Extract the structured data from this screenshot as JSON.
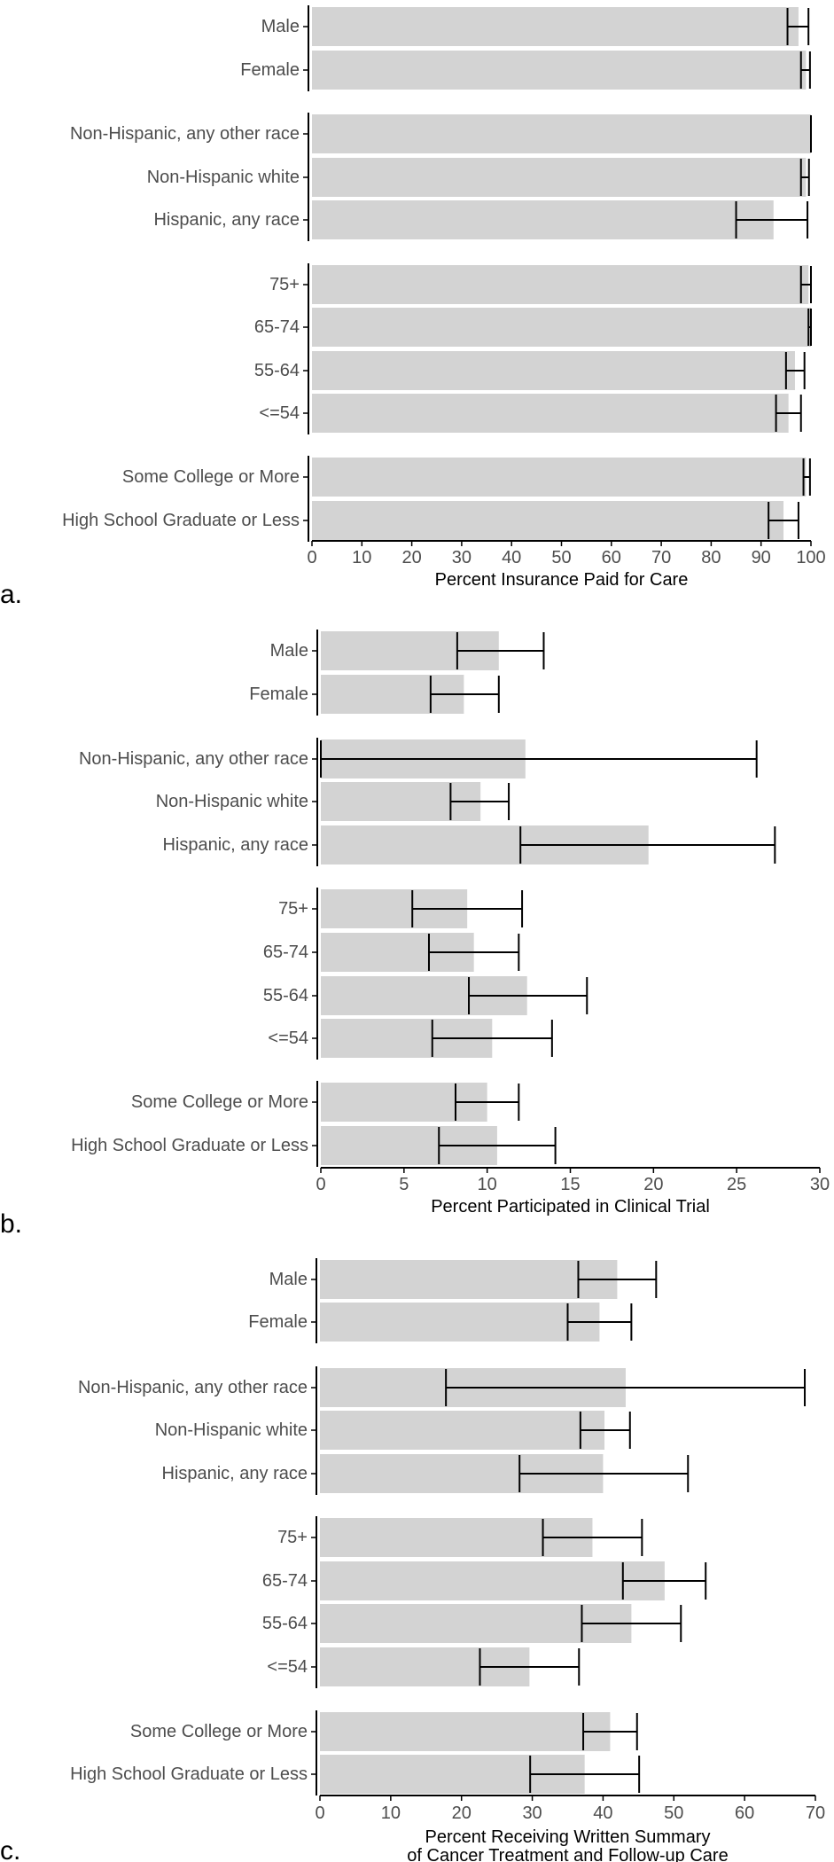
{
  "chart_data": [
    {
      "type": "bar",
      "panel_label": "a.",
      "xlabel": [
        "Percent Insurance Paid for Care"
      ],
      "xlim": [
        0,
        100
      ],
      "xticks": [
        0,
        10,
        20,
        30,
        40,
        50,
        60,
        70,
        80,
        90,
        100
      ],
      "groups": [
        {
          "items": [
            {
              "label": "Male",
              "value": 97.5,
              "ci": [
                95.3,
                99.5
              ]
            },
            {
              "label": "Female",
              "value": 99.0,
              "ci": [
                98.0,
                99.8
              ]
            }
          ]
        },
        {
          "items": [
            {
              "label": "Non-Hispanic, any other race",
              "value": 100.0,
              "ci": [
                100.0,
                100.0
              ]
            },
            {
              "label": "Non-Hispanic white",
              "value": 99.0,
              "ci": [
                98.0,
                99.6
              ]
            },
            {
              "label": "Hispanic, any race",
              "value": 92.5,
              "ci": [
                85.0,
                99.3
              ]
            }
          ]
        },
        {
          "items": [
            {
              "label": "75+",
              "value": 99.5,
              "ci": [
                98.0,
                100.0
              ]
            },
            {
              "label": "65-74",
              "value": 100.0,
              "ci": [
                99.5,
                100.0
              ]
            },
            {
              "label": "55-64",
              "value": 96.8,
              "ci": [
                95.0,
                98.7
              ]
            },
            {
              "label": "<=54",
              "value": 95.5,
              "ci": [
                93.0,
                98.0
              ]
            }
          ]
        },
        {
          "items": [
            {
              "label": "Some College or More",
              "value": 99.0,
              "ci": [
                98.5,
                99.8
              ]
            },
            {
              "label": "High School Graduate or Less",
              "value": 94.5,
              "ci": [
                91.5,
                97.5
              ]
            }
          ]
        }
      ]
    },
    {
      "type": "bar",
      "panel_label": "b.",
      "xlabel": [
        "Percent Participated in Clinical Trial"
      ],
      "xlim": [
        0,
        30
      ],
      "xticks": [
        0,
        5,
        10,
        15,
        20,
        25,
        30
      ],
      "groups": [
        {
          "items": [
            {
              "label": "Male",
              "value": 10.7,
              "ci": [
                8.2,
                13.4
              ]
            },
            {
              "label": "Female",
              "value": 8.6,
              "ci": [
                6.6,
                10.7
              ]
            }
          ]
        },
        {
          "items": [
            {
              "label": "Non-Hispanic, any other race",
              "value": 12.3,
              "ci": [
                0.0,
                26.2
              ]
            },
            {
              "label": "Non-Hispanic white",
              "value": 9.6,
              "ci": [
                7.8,
                11.3
              ]
            },
            {
              "label": "Hispanic, any race",
              "value": 19.7,
              "ci": [
                12.0,
                27.3
              ]
            }
          ]
        },
        {
          "items": [
            {
              "label": "75+",
              "value": 8.8,
              "ci": [
                5.5,
                12.1
              ]
            },
            {
              "label": "65-74",
              "value": 9.2,
              "ci": [
                6.5,
                11.9
              ]
            },
            {
              "label": "55-64",
              "value": 12.4,
              "ci": [
                8.9,
                16.0
              ]
            },
            {
              "label": "<=54",
              "value": 10.3,
              "ci": [
                6.7,
                13.9
              ]
            }
          ]
        },
        {
          "items": [
            {
              "label": "Some College or More",
              "value": 10.0,
              "ci": [
                8.1,
                11.9
              ]
            },
            {
              "label": "High School Graduate or Less",
              "value": 10.6,
              "ci": [
                7.1,
                14.1
              ]
            }
          ]
        }
      ]
    },
    {
      "type": "bar",
      "panel_label": "c.",
      "xlabel": [
        "Percent Receiving Written Summary",
        "of Cancer Treatment and Follow-up Care"
      ],
      "xlim": [
        0,
        70
      ],
      "xticks": [
        0,
        10,
        20,
        30,
        40,
        50,
        60,
        70
      ],
      "groups": [
        {
          "items": [
            {
              "label": "Male",
              "value": 42.0,
              "ci": [
                36.5,
                47.5
              ]
            },
            {
              "label": "Female",
              "value": 39.5,
              "ci": [
                35.0,
                44.0
              ]
            }
          ]
        },
        {
          "items": [
            {
              "label": "Non-Hispanic, any other race",
              "value": 43.2,
              "ci": [
                17.8,
                68.5
              ]
            },
            {
              "label": "Non-Hispanic white",
              "value": 40.2,
              "ci": [
                36.8,
                43.8
              ]
            },
            {
              "label": "Hispanic, any race",
              "value": 40.0,
              "ci": [
                28.2,
                52.0
              ]
            }
          ]
        },
        {
          "items": [
            {
              "label": "75+",
              "value": 38.5,
              "ci": [
                31.5,
                45.5
              ]
            },
            {
              "label": "65-74",
              "value": 48.7,
              "ci": [
                42.8,
                54.5
              ]
            },
            {
              "label": "55-64",
              "value": 44.0,
              "ci": [
                37.0,
                51.0
              ]
            },
            {
              "label": "<=54",
              "value": 29.6,
              "ci": [
                22.6,
                36.6
              ]
            }
          ]
        },
        {
          "items": [
            {
              "label": "Some College or More",
              "value": 41.0,
              "ci": [
                37.2,
                44.8
              ]
            },
            {
              "label": "High School Graduate or Less",
              "value": 37.4,
              "ci": [
                29.7,
                45.1
              ]
            }
          ]
        }
      ]
    }
  ],
  "colors": {
    "bar": "#d3d3d3",
    "axis": "#000000",
    "text": "#4d4d4d",
    "panel_label": "#000000"
  }
}
